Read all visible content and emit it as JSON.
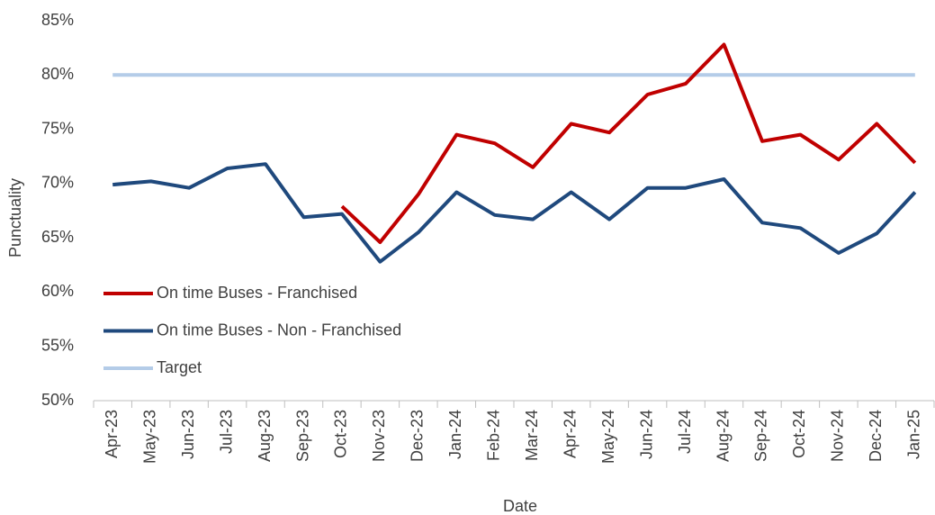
{
  "chart_data": {
    "type": "line",
    "x_label": "Date",
    "y_label": "Punctuality",
    "categories": [
      "Apr-23",
      "May-23",
      "Jun-23",
      "Jul-23",
      "Aug-23",
      "Sep-23",
      "Oct-23",
      "Nov-23",
      "Dec-23",
      "Jan-24",
      "Feb-24",
      "Mar-24",
      "Apr-24",
      "May-24",
      "Jun-24",
      "Jul-24",
      "Aug-24",
      "Sep-24",
      "Oct-24",
      "Nov-24",
      "Dec-24",
      "Jan-25"
    ],
    "series": [
      {
        "name": "On time Buses - Franchised",
        "color": "#c00000",
        "values": [
          null,
          null,
          null,
          null,
          null,
          null,
          67.9,
          64.6,
          69.0,
          74.5,
          73.7,
          71.5,
          75.5,
          74.7,
          78.2,
          79.2,
          82.8,
          73.9,
          74.5,
          72.2,
          75.5,
          71.9
        ]
      },
      {
        "name": "On time Buses - Non - Franchised",
        "color": "#1f497d",
        "values": [
          69.9,
          70.2,
          69.6,
          71.4,
          71.8,
          66.9,
          67.2,
          62.8,
          65.5,
          69.2,
          67.1,
          66.7,
          69.2,
          66.7,
          69.6,
          69.6,
          70.4,
          66.4,
          65.9,
          63.6,
          65.4,
          69.2
        ]
      },
      {
        "name": "Target",
        "color": "#b4cce8",
        "values": [
          80,
          80,
          80,
          80,
          80,
          80,
          80,
          80,
          80,
          80,
          80,
          80,
          80,
          80,
          80,
          80,
          80,
          80,
          80,
          80,
          80,
          80
        ]
      }
    ],
    "ylim": [
      50,
      85
    ],
    "yticks": [
      {
        "value": 50,
        "label": "50%"
      },
      {
        "value": 55,
        "label": "55%"
      },
      {
        "value": 60,
        "label": "60%"
      },
      {
        "value": 65,
        "label": "65%"
      },
      {
        "value": 70,
        "label": "70%"
      },
      {
        "value": 75,
        "label": "75%"
      },
      {
        "value": 80,
        "label": "80%"
      },
      {
        "value": 85,
        "label": "85%"
      }
    ],
    "grid": false,
    "legend": "lower left"
  }
}
